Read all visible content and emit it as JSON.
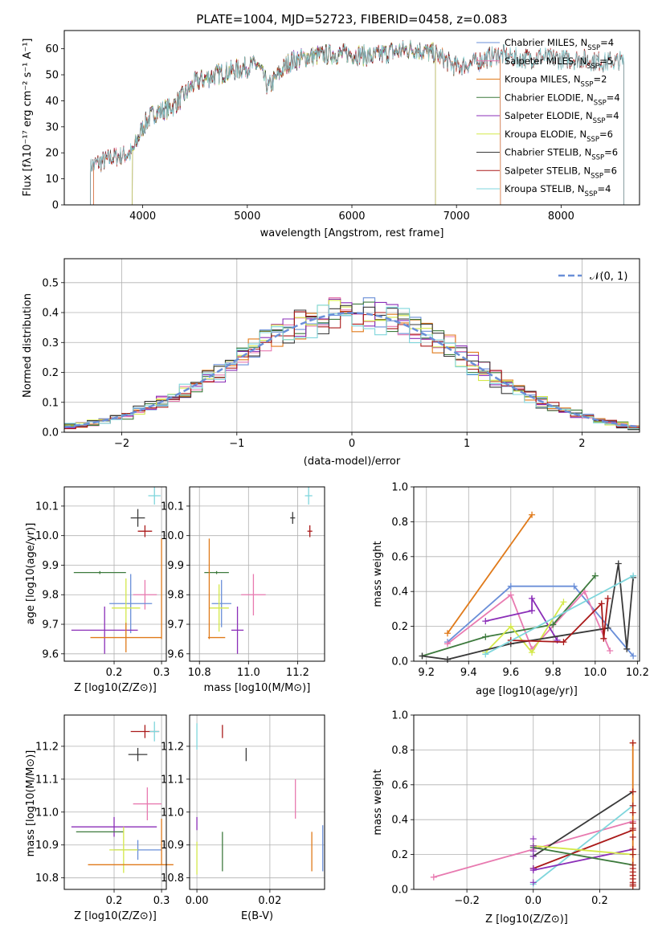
{
  "title": "PLATE=1004, MJD=52723, FIBERID=0458, z=0.083",
  "colors": {
    "Chabrier MILES": "#6a8fd8",
    "Salpeter MILES": "#e87ab0",
    "Kroupa MILES": "#e07a1a",
    "Chabrier ELODIE": "#3d7a3d",
    "Salpeter ELODIE": "#8b2fb8",
    "Kroupa ELODIE": "#d4e84a",
    "Chabrier STELIB": "#3a3a3a",
    "Salpeter STELIB": "#aa1a1a",
    "Kroupa STELIB": "#7fd6dc"
  },
  "chart_data": [
    {
      "id": "spectrum",
      "type": "line",
      "title": "PLATE=1004, MJD=52723, FIBERID=0458, z=0.083",
      "xlabel": "wavelength [Angstrom, rest frame]",
      "ylabel": "Flux [f_λ 10^-17 erg cm^-2 s^-1 A^-1]",
      "xlim": [
        3250,
        8750
      ],
      "ylim": [
        0,
        67
      ],
      "xticks": [
        "4000",
        "5000",
        "6000",
        "7000",
        "8000"
      ],
      "yticks": [
        "0",
        "10",
        "20",
        "30",
        "40",
        "50",
        "60"
      ],
      "legend_position": "top-right",
      "continuum": {
        "x": [
          3500,
          3700,
          3900,
          4000,
          4100,
          4300,
          4500,
          4700,
          4900,
          5100,
          5200,
          5400,
          5600,
          5800,
          6000,
          6200,
          6400,
          6600,
          6800,
          7000,
          7200,
          7400,
          7600,
          7800,
          8000,
          8200,
          8400,
          8600
        ],
        "y": [
          15,
          18,
          20,
          30,
          35,
          38,
          47,
          50,
          52,
          54,
          45,
          55,
          57,
          58,
          58,
          57,
          59,
          60,
          58,
          53,
          55,
          58,
          56,
          57,
          56,
          56,
          55,
          55
        ]
      },
      "model_ranges": [
        {
          "name": "Chabrier MILES",
          "x": [
            3530,
            7420
          ]
        },
        {
          "name": "Salpeter MILES",
          "x": [
            3530,
            7420
          ]
        },
        {
          "name": "Kroupa MILES",
          "x": [
            3530,
            7420
          ]
        },
        {
          "name": "Chabrier ELODIE",
          "x": [
            3900,
            6800
          ]
        },
        {
          "name": "Salpeter ELODIE",
          "x": [
            3900,
            6800
          ]
        },
        {
          "name": "Kroupa ELODIE",
          "x": [
            3900,
            6800
          ]
        },
        {
          "name": "Chabrier STELIB",
          "x": [
            3500,
            8600
          ]
        },
        {
          "name": "Salpeter STELIB",
          "x": [
            3500,
            8600
          ]
        },
        {
          "name": "Kroupa STELIB",
          "x": [
            3500,
            8600
          ]
        }
      ],
      "legend": [
        {
          "name": "Chabrier MILES",
          "nssp": "4"
        },
        {
          "name": "Salpeter MILES",
          "nssp": "5"
        },
        {
          "name": "Kroupa MILES",
          "nssp": "2"
        },
        {
          "name": "Chabrier ELODIE",
          "nssp": "4"
        },
        {
          "name": "Salpeter ELODIE",
          "nssp": "4"
        },
        {
          "name": "Kroupa ELODIE",
          "nssp": "6"
        },
        {
          "name": "Chabrier STELIB",
          "nssp": "6"
        },
        {
          "name": "Salpeter STELIB",
          "nssp": "6"
        },
        {
          "name": "Kroupa STELIB",
          "nssp": "4"
        }
      ]
    },
    {
      "id": "residuals",
      "type": "histogram",
      "xlabel": "(data-model)/error",
      "ylabel": "Normed distribution",
      "xlim": [
        -2.5,
        2.5
      ],
      "ylim": [
        0,
        0.58
      ],
      "xticks": [
        "−2",
        "−1",
        "0",
        "1",
        "2"
      ],
      "yticks": [
        "0.0",
        "0.1",
        "0.2",
        "0.3",
        "0.4",
        "0.5"
      ],
      "bin_edges_start": -2.5,
      "bin_width": 0.1,
      "gaussian_label": "𝒩(0, 1)",
      "legend_position": "top-right"
    },
    {
      "id": "age_vs_Z",
      "type": "errorbar",
      "xlabel": "Z [log10(Z/Z⊙)]",
      "ylabel": "age [log10(age/yr)]",
      "xlim": [
        0.095,
        0.31
      ],
      "ylim": [
        9.575,
        10.165
      ],
      "xticks": [
        {
          "v": 0.2,
          "t": "0.2"
        },
        {
          "v": 0.3,
          "t": "0.3"
        }
      ],
      "yticks": [
        {
          "v": 9.6,
          "t": "9.6"
        },
        {
          "v": 9.7,
          "t": "9.7"
        },
        {
          "v": 9.8,
          "t": "9.8"
        },
        {
          "v": 9.9,
          "t": "9.9"
        },
        {
          "v": 10.0,
          "t": "10.0"
        },
        {
          "v": 10.1,
          "t": "10.1"
        }
      ],
      "points": [
        {
          "name": "Kroupa STELIB",
          "x": 0.285,
          "xerr": 0.013,
          "y": 10.135,
          "yerr": 0.03
        },
        {
          "name": "Chabrier STELIB",
          "x": 0.25,
          "xerr": 0.015,
          "y": 10.06,
          "yerr": 0.03
        },
        {
          "name": "Salpeter STELIB",
          "x": 0.265,
          "xerr": 0.015,
          "y": 10.015,
          "yerr": 0.02
        },
        {
          "name": "Chabrier ELODIE",
          "x": 0.17,
          "xerr": 0.055,
          "y": 9.875,
          "yerr": 0.005
        },
        {
          "name": "Salpeter MILES",
          "x": 0.265,
          "xerr": 0.025,
          "y": 9.8,
          "yerr": 0.05
        },
        {
          "name": "Chabrier MILES",
          "x": 0.235,
          "xerr": 0.045,
          "y": 9.77,
          "yerr": 0.1
        },
        {
          "name": "Kroupa ELODIE",
          "x": 0.225,
          "xerr": 0.03,
          "y": 9.755,
          "yerr": 0.1
        },
        {
          "name": "Salpeter ELODIE",
          "x": 0.18,
          "xerr": 0.07,
          "y": 9.68,
          "yerr": 0.08
        },
        {
          "name": "Kroupa MILES",
          "x": 0.225,
          "xerr": 0.075,
          "y": 9.655,
          "yerr": 0.05
        },
        {
          "name": "Kroupa MILES",
          "x": 0.3,
          "xerr": 0.0,
          "y": 9.82,
          "yerr": 0.17
        }
      ]
    },
    {
      "id": "age_vs_mass",
      "type": "errorbar",
      "xlabel": "mass [log10(M/M⊙)]",
      "ylabel": "",
      "xlim": [
        10.76,
        11.31
      ],
      "ylim": [
        9.575,
        10.165
      ],
      "xticks": [
        {
          "v": 10.8,
          "t": "10.8"
        },
        {
          "v": 11.0,
          "t": "11.0"
        },
        {
          "v": 11.2,
          "t": "11.2"
        }
      ],
      "yticks": [
        {
          "v": 9.6,
          "t": "9.6"
        },
        {
          "v": 9.7,
          "t": "9.7"
        },
        {
          "v": 9.8,
          "t": "9.8"
        },
        {
          "v": 9.9,
          "t": "9.9"
        },
        {
          "v": 10.0,
          "t": "10.0"
        },
        {
          "v": 10.1,
          "t": "10.1"
        }
      ],
      "points": [
        {
          "name": "Kroupa STELIB",
          "x": 11.245,
          "xerr": 0.015,
          "y": 10.135,
          "yerr": 0.03
        },
        {
          "name": "Chabrier STELIB",
          "x": 11.18,
          "xerr": 0.01,
          "y": 10.06,
          "yerr": 0.02
        },
        {
          "name": "Salpeter STELIB",
          "x": 11.25,
          "xerr": 0.01,
          "y": 10.015,
          "yerr": 0.02
        },
        {
          "name": "Chabrier ELODIE",
          "x": 10.87,
          "xerr": 0.05,
          "y": 9.875,
          "yerr": 0.005
        },
        {
          "name": "Salpeter MILES",
          "x": 11.02,
          "xerr": 0.05,
          "y": 9.8,
          "yerr": 0.07
        },
        {
          "name": "Chabrier MILES",
          "x": 10.89,
          "xerr": 0.04,
          "y": 9.77,
          "yerr": 0.08
        },
        {
          "name": "Kroupa ELODIE",
          "x": 10.88,
          "xerr": 0.04,
          "y": 9.755,
          "yerr": 0.08
        },
        {
          "name": "Salpeter ELODIE",
          "x": 10.955,
          "xerr": 0.025,
          "y": 9.68,
          "yerr": 0.08
        },
        {
          "name": "Kroupa MILES",
          "x": 10.87,
          "xerr": 0.035,
          "y": 9.655,
          "yerr": 0.0
        },
        {
          "name": "Kroupa MILES",
          "x": 10.84,
          "xerr": 0.0,
          "y": 9.82,
          "yerr": 0.17
        }
      ]
    },
    {
      "id": "weight_vs_age",
      "type": "line",
      "xlabel": "age  [log10(age/yr)]",
      "ylabel": "mass weight",
      "xlim": [
        9.14,
        10.21
      ],
      "ylim": [
        0,
        1.0
      ],
      "xticks": [
        {
          "v": 9.2,
          "t": "9.2"
        },
        {
          "v": 9.4,
          "t": "9.4"
        },
        {
          "v": 9.6,
          "t": "9.6"
        },
        {
          "v": 9.8,
          "t": "9.8"
        },
        {
          "v": 10.0,
          "t": "10.0"
        },
        {
          "v": 10.2,
          "t": "10.2"
        }
      ],
      "yticks": [
        {
          "v": 0.0,
          "t": "0.0"
        },
        {
          "v": 0.2,
          "t": "0.2"
        },
        {
          "v": 0.4,
          "t": "0.4"
        },
        {
          "v": 0.6,
          "t": "0.6"
        },
        {
          "v": 0.8,
          "t": "0.8"
        },
        {
          "v": 1.0,
          "t": "1.0"
        }
      ],
      "series": [
        {
          "name": "Kroupa MILES",
          "x": [
            9.3,
            9.7
          ],
          "y": [
            0.16,
            0.84
          ]
        },
        {
          "name": "Chabrier MILES",
          "x": [
            9.3,
            9.6,
            9.9,
            10.18
          ],
          "y": [
            0.11,
            0.43,
            0.43,
            0.03
          ]
        },
        {
          "name": "Salpeter MILES",
          "x": [
            9.3,
            9.6,
            9.7,
            9.95,
            10.07
          ],
          "y": [
            0.1,
            0.38,
            0.07,
            0.4,
            0.06
          ]
        },
        {
          "name": "Chabrier ELODIE",
          "x": [
            9.18,
            9.48,
            9.8,
            10.0
          ],
          "y": [
            0.03,
            0.14,
            0.21,
            0.49
          ]
        },
        {
          "name": "Salpeter ELODIE",
          "x": [
            9.48,
            9.7,
            9.7,
            9.82
          ],
          "y": [
            0.23,
            0.29,
            0.36,
            0.12
          ]
        },
        {
          "name": "Kroupa ELODIE",
          "x": [
            9.48,
            9.6,
            9.7,
            9.85
          ],
          "y": [
            0.05,
            0.2,
            0.05,
            0.34
          ]
        },
        {
          "name": "Chabrier STELIB",
          "x": [
            9.18,
            9.3,
            9.6,
            10.06,
            10.11,
            10.15,
            10.18
          ],
          "y": [
            0.03,
            0.01,
            0.1,
            0.19,
            0.56,
            0.07,
            0.48
          ]
        },
        {
          "name": "Salpeter STELIB",
          "x": [
            9.6,
            9.85,
            10.03,
            10.04,
            10.06
          ],
          "y": [
            0.12,
            0.11,
            0.33,
            0.13,
            0.36
          ]
        },
        {
          "name": "Kroupa STELIB",
          "x": [
            9.48,
            10.18
          ],
          "y": [
            0.04,
            0.49
          ]
        }
      ]
    },
    {
      "id": "mass_vs_Z",
      "type": "errorbar",
      "xlabel": "Z [log10(Z/Z⊙)]",
      "ylabel": "mass [log10(M/M⊙)]",
      "xlim": [
        0.095,
        0.31
      ],
      "ylim": [
        10.765,
        11.295
      ],
      "xticks": [
        {
          "v": 0.2,
          "t": "0.2"
        },
        {
          "v": 0.3,
          "t": "0.3"
        }
      ],
      "yticks": [
        {
          "v": 10.8,
          "t": "10.8"
        },
        {
          "v": 10.9,
          "t": "10.9"
        },
        {
          "v": 11.0,
          "t": "11.0"
        },
        {
          "v": 11.1,
          "t": "11.1"
        },
        {
          "v": 11.2,
          "t": "11.2"
        }
      ],
      "points": [
        {
          "name": "Salpeter STELIB",
          "x": 0.265,
          "xerr": 0.03,
          "y": 11.245,
          "yerr": 0.02
        },
        {
          "name": "Kroupa STELIB",
          "x": 0.285,
          "xerr": 0.01,
          "y": 11.245,
          "yerr": 0.03
        },
        {
          "name": "Chabrier STELIB",
          "x": 0.25,
          "xerr": 0.02,
          "y": 11.175,
          "yerr": 0.02
        },
        {
          "name": "Salpeter MILES",
          "x": 0.27,
          "xerr": 0.03,
          "y": 11.025,
          "yerr": 0.05
        },
        {
          "name": "Salpeter ELODIE",
          "x": 0.2,
          "xerr": 0.09,
          "y": 10.955,
          "yerr": 0.03
        },
        {
          "name": "Chabrier ELODIE",
          "x": 0.17,
          "xerr": 0.05,
          "y": 10.94,
          "yerr": 0.0
        },
        {
          "name": "Chabrier MILES",
          "x": 0.25,
          "xerr": 0.05,
          "y": 10.885,
          "yerr": 0.03
        },
        {
          "name": "Kroupa ELODIE",
          "x": 0.22,
          "xerr": 0.03,
          "y": 10.885,
          "yerr": 0.07
        },
        {
          "name": "Kroupa MILES",
          "x": 0.235,
          "xerr": 0.09,
          "y": 10.84,
          "yerr": 0.0
        },
        {
          "name": "Kroupa MILES",
          "x": 0.3,
          "xerr": 0.0,
          "y": 10.91,
          "yerr": 0.07
        }
      ]
    },
    {
      "id": "mass_vs_EBV",
      "type": "errorbar",
      "xlabel": "E(B-V)",
      "ylabel": "",
      "xlim": [
        -0.002,
        0.035
      ],
      "ylim": [
        10.765,
        11.295
      ],
      "xticks": [
        {
          "v": 0.0,
          "t": "0.00"
        },
        {
          "v": 0.02,
          "t": "0.02"
        }
      ],
      "yticks": [
        {
          "v": 10.8,
          "t": "10.8"
        },
        {
          "v": 10.9,
          "t": "10.9"
        },
        {
          "v": 11.0,
          "t": "11.0"
        },
        {
          "v": 11.1,
          "t": "11.1"
        },
        {
          "v": 11.2,
          "t": "11.2"
        }
      ],
      "points": [
        {
          "name": "Kroupa STELIB",
          "x": 0.0,
          "xerr": 0.0,
          "y": 11.23,
          "yerr": 0.04
        },
        {
          "name": "Salpeter STELIB",
          "x": 0.007,
          "xerr": 0.0,
          "y": 11.245,
          "yerr": 0.02
        },
        {
          "name": "Chabrier STELIB",
          "x": 0.0135,
          "xerr": 0.0,
          "y": 11.175,
          "yerr": 0.02
        },
        {
          "name": "Salpeter MILES",
          "x": 0.027,
          "xerr": 0.0,
          "y": 11.04,
          "yerr": 0.06
        },
        {
          "name": "Salpeter ELODIE",
          "x": 0.0,
          "xerr": 0.0,
          "y": 10.965,
          "yerr": 0.02
        },
        {
          "name": "Chabrier ELODIE",
          "x": 0.007,
          "xerr": 0.0,
          "y": 10.88,
          "yerr": 0.06
        },
        {
          "name": "Kroupa ELODIE",
          "x": 0.0,
          "xerr": 0.0,
          "y": 10.86,
          "yerr": 0.05
        },
        {
          "name": "Kroupa MILES",
          "x": 0.0315,
          "xerr": 0.0,
          "y": 10.88,
          "yerr": 0.06
        },
        {
          "name": "Chabrier MILES",
          "x": 0.0345,
          "xerr": 0.0,
          "y": 10.89,
          "yerr": 0.07
        }
      ]
    },
    {
      "id": "weight_vs_Z",
      "type": "line",
      "xlabel": "Z [log10(Z/Z⊙)]",
      "ylabel": "mass weight",
      "xlim": [
        -0.36,
        0.32
      ],
      "ylim": [
        0,
        1.0
      ],
      "xticks": [
        {
          "v": -0.2,
          "t": "−0.2"
        },
        {
          "v": 0.0,
          "t": "0.0"
        },
        {
          "v": 0.2,
          "t": "0.2"
        }
      ],
      "yticks": [
        {
          "v": 0.0,
          "t": "0.0"
        },
        {
          "v": 0.2,
          "t": "0.2"
        },
        {
          "v": 0.4,
          "t": "0.4"
        },
        {
          "v": 0.6,
          "t": "0.6"
        },
        {
          "v": 0.8,
          "t": "0.8"
        },
        {
          "v": 1.0,
          "t": "1.0"
        }
      ],
      "series": [
        {
          "name": "Salpeter MILES",
          "x": [
            -0.3,
            0.3
          ],
          "y": [
            0.07,
            0.39
          ]
        },
        {
          "name": "Chabrier STELIB",
          "x": [
            0.0,
            0.3
          ],
          "y": [
            0.19,
            0.56
          ]
        },
        {
          "name": "Kroupa STELIB",
          "x": [
            0.0,
            0.3
          ],
          "y": [
            0.03,
            0.48
          ]
        },
        {
          "name": "Salpeter STELIB",
          "x": [
            0.0,
            0.3
          ],
          "y": [
            0.12,
            0.34
          ]
        },
        {
          "name": "Salpeter ELODIE",
          "x": [
            0.0,
            0.3
          ],
          "y": [
            0.11,
            0.23
          ]
        },
        {
          "name": "Kroupa ELODIE",
          "x": [
            0.0,
            0.3
          ],
          "y": [
            0.25,
            0.2
          ]
        },
        {
          "name": "Chabrier ELODIE",
          "x": [
            0.0,
            0.3
          ],
          "y": [
            0.24,
            0.14
          ]
        },
        {
          "name": "Kroupa MILES",
          "x": [
            0.3,
            0.3
          ],
          "y": [
            0.02,
            0.84
          ]
        }
      ],
      "z_zero_points": [
        0.29,
        0.25,
        0.22,
        0.12,
        0.04,
        0.19
      ],
      "z_max_points": [
        0.84,
        0.56,
        0.48,
        0.44,
        0.38,
        0.35,
        0.3,
        0.23,
        0.2,
        0.14,
        0.12,
        0.1,
        0.08,
        0.06,
        0.04,
        0.03,
        0.02
      ]
    }
  ]
}
